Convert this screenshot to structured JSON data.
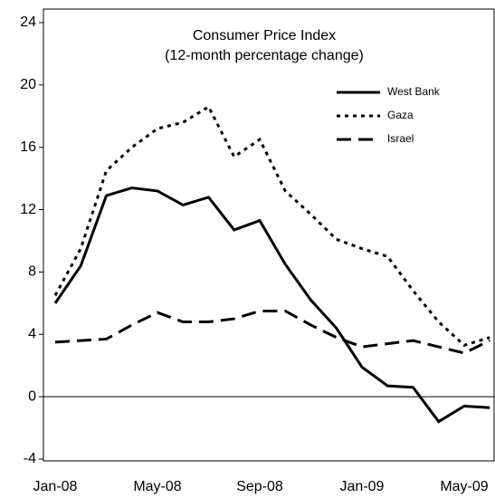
{
  "chart_data": {
    "type": "line",
    "title": "Consumer Price Index",
    "subtitle": "(12-month percentage change)",
    "categories": [
      "Jan-08",
      null,
      null,
      null,
      "May-08",
      null,
      null,
      null,
      "Sep-08",
      null,
      null,
      null,
      "Jan-09",
      null,
      null,
      null,
      "May-09",
      null
    ],
    "series": [
      {
        "name": "West Bank",
        "color": "#000000",
        "style": "solid",
        "values": [
          6.0,
          8.4,
          12.9,
          13.4,
          13.2,
          12.3,
          12.8,
          10.7,
          11.3,
          8.5,
          6.2,
          4.4,
          1.9,
          0.7,
          0.6,
          -1.6,
          -0.6,
          -0.7
        ]
      },
      {
        "name": "Gaza",
        "color": "#000000",
        "style": "dotted",
        "values": [
          6.5,
          9.5,
          14.5,
          16.0,
          17.2,
          17.6,
          18.6,
          15.4,
          16.5,
          13.2,
          11.7,
          10.1,
          9.5,
          9.0,
          6.8,
          4.8,
          3.3,
          3.8
        ]
      },
      {
        "name": "Israel",
        "color": "#000000",
        "style": "dashed",
        "values": [
          3.5,
          3.6,
          3.7,
          4.6,
          5.4,
          4.8,
          4.8,
          5.0,
          5.5,
          5.5,
          4.6,
          3.8,
          3.2,
          3.4,
          3.6,
          3.2,
          2.8,
          3.6
        ]
      }
    ],
    "ylim": [
      -4,
      24
    ],
    "yticks": [
      -4,
      0,
      4,
      8,
      12,
      16,
      20,
      24
    ],
    "legend": "upper right"
  }
}
